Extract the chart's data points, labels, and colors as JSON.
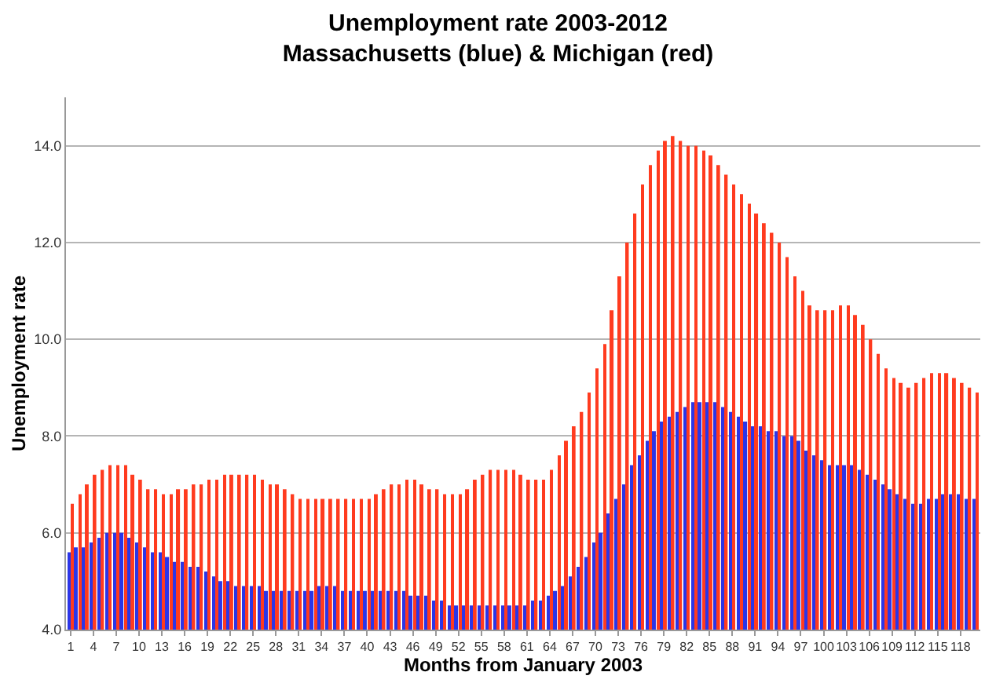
{
  "chart_data": {
    "type": "bar",
    "title": "Unemployment rate 2003-2012\nMassachusetts (blue) & Michigan (red)",
    "xlabel": "Months from January 2003",
    "ylabel": "Unemployment rate",
    "categories": [
      "1",
      null,
      null,
      "4",
      null,
      null,
      "7",
      null,
      null,
      "10",
      null,
      null,
      "13",
      null,
      null,
      "16",
      null,
      null,
      "19",
      null,
      null,
      "22",
      null,
      null,
      "25",
      null,
      null,
      "28",
      null,
      null,
      "31",
      null,
      null,
      "34",
      null,
      null,
      "37",
      null,
      null,
      "40",
      null,
      null,
      "43",
      null,
      null,
      "46",
      null,
      null,
      "49",
      null,
      null,
      "52",
      null,
      null,
      "55",
      null,
      null,
      "58",
      null,
      null,
      "61",
      null,
      null,
      "64",
      null,
      null,
      "67",
      null,
      null,
      "70",
      null,
      null,
      "73",
      null,
      null,
      "76",
      null,
      null,
      "79",
      null,
      null,
      "82",
      null,
      null,
      "85",
      null,
      null,
      "88",
      null,
      null,
      "91",
      null,
      null,
      "94",
      null,
      null,
      "97",
      null,
      null,
      "100",
      null,
      null,
      "103",
      null,
      null,
      "106",
      null,
      null,
      "109",
      null,
      null,
      "112",
      null,
      null,
      "115",
      null,
      null,
      "118",
      null,
      null
    ],
    "series": [
      {
        "color": "#2b35e8",
        "values": [
          5.6,
          5.7,
          5.7,
          5.8,
          5.9,
          6.0,
          6.0,
          6.0,
          5.9,
          5.8,
          5.7,
          5.6,
          5.6,
          5.5,
          5.4,
          5.4,
          5.3,
          5.3,
          5.2,
          5.1,
          5.0,
          5.0,
          4.9,
          4.9,
          4.9,
          4.9,
          4.8,
          4.8,
          4.8,
          4.8,
          4.8,
          4.8,
          4.8,
          4.9,
          4.9,
          4.9,
          4.8,
          4.8,
          4.8,
          4.8,
          4.8,
          4.8,
          4.8,
          4.8,
          4.8,
          4.7,
          4.7,
          4.7,
          4.6,
          4.6,
          4.5,
          4.5,
          4.5,
          4.5,
          4.5,
          4.5,
          4.5,
          4.5,
          4.5,
          4.5,
          4.5,
          4.6,
          4.6,
          4.7,
          4.8,
          4.9,
          5.1,
          5.3,
          5.5,
          5.8,
          6.0,
          6.4,
          6.7,
          7.0,
          7.4,
          7.6,
          7.9,
          8.1,
          8.3,
          8.4,
          8.5,
          8.6,
          8.7,
          8.7,
          8.7,
          8.7,
          8.6,
          8.5,
          8.4,
          8.3,
          8.2,
          8.2,
          8.1,
          8.1,
          8.0,
          8.0,
          7.9,
          7.7,
          7.6,
          7.5,
          7.4,
          7.4,
          7.4,
          7.4,
          7.3,
          7.2,
          7.1,
          7.0,
          6.9,
          6.8,
          6.7,
          6.6,
          6.6,
          6.7,
          6.7,
          6.8,
          6.8,
          6.8,
          6.7,
          6.7
        ]
      },
      {
        "color": "#ff3b1f",
        "values": [
          6.6,
          6.8,
          7.0,
          7.2,
          7.3,
          7.4,
          7.4,
          7.4,
          7.2,
          7.1,
          6.9,
          6.9,
          6.8,
          6.8,
          6.9,
          6.9,
          7.0,
          7.0,
          7.1,
          7.1,
          7.2,
          7.2,
          7.2,
          7.2,
          7.2,
          7.1,
          7.0,
          7.0,
          6.9,
          6.8,
          6.7,
          6.7,
          6.7,
          6.7,
          6.7,
          6.7,
          6.7,
          6.7,
          6.7,
          6.7,
          6.8,
          6.9,
          7.0,
          7.0,
          7.1,
          7.1,
          7.0,
          6.9,
          6.9,
          6.8,
          6.8,
          6.8,
          6.9,
          7.1,
          7.2,
          7.3,
          7.3,
          7.3,
          7.3,
          7.2,
          7.1,
          7.1,
          7.1,
          7.3,
          7.6,
          7.9,
          8.2,
          8.5,
          8.9,
          9.4,
          9.9,
          10.6,
          11.3,
          12.0,
          12.6,
          13.2,
          13.6,
          13.9,
          14.1,
          14.2,
          14.1,
          14.0,
          14.0,
          13.9,
          13.8,
          13.6,
          13.4,
          13.2,
          13.0,
          12.8,
          12.6,
          12.4,
          12.2,
          12.0,
          11.7,
          11.3,
          11.0,
          10.7,
          10.6,
          10.6,
          10.6,
          10.7,
          10.7,
          10.5,
          10.3,
          10.0,
          9.7,
          9.4,
          9.2,
          9.1,
          9.0,
          9.1,
          9.2,
          9.3,
          9.3,
          9.3,
          9.2,
          9.1,
          9.0,
          8.9
        ]
      }
    ],
    "ylim": [
      4,
      15
    ],
    "yticks": [
      {
        "value": 4,
        "label": "4.0"
      },
      {
        "value": 6,
        "label": "6.0"
      },
      {
        "value": 8,
        "label": "8.0"
      },
      {
        "value": 10,
        "label": "10.0"
      },
      {
        "value": 12,
        "label": "12.0"
      },
      {
        "value": 14,
        "label": "14.0"
      }
    ],
    "grid": "y"
  }
}
